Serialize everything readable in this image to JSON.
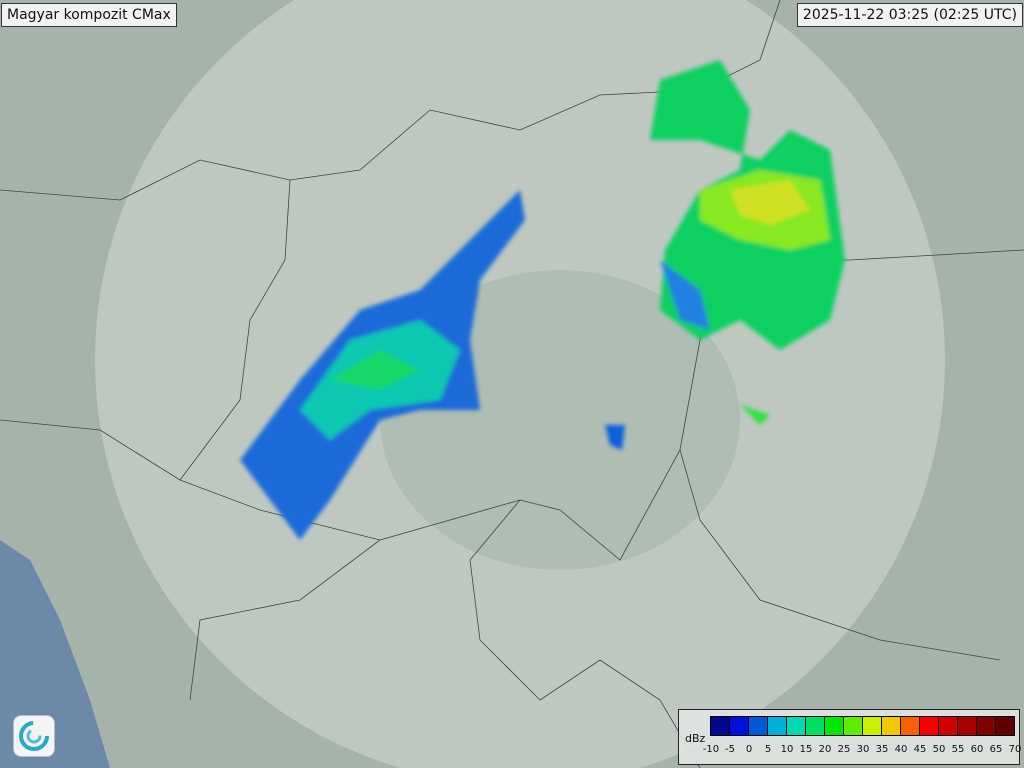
{
  "title": "Magyar kompozit  CMax",
  "timestamp": "2025-11-22 03:25 (02:25 UTC)",
  "legend": {
    "unit": "dBz",
    "labels": [
      "-10",
      "-5",
      "0",
      "5",
      "10",
      "15",
      "20",
      "25",
      "30",
      "35",
      "40",
      "45",
      "50",
      "55",
      "60",
      "65",
      "70"
    ],
    "colors": [
      "#000890",
      "#0010d8",
      "#0058d8",
      "#00b0d8",
      "#00d8b0",
      "#00e060",
      "#00e800",
      "#60ec00",
      "#c8f000",
      "#f0c800",
      "#f86000",
      "#f80000",
      "#d00000",
      "#a80000",
      "#800000",
      "#600000"
    ]
  },
  "logo_icon": "met-service-swirl-icon"
}
